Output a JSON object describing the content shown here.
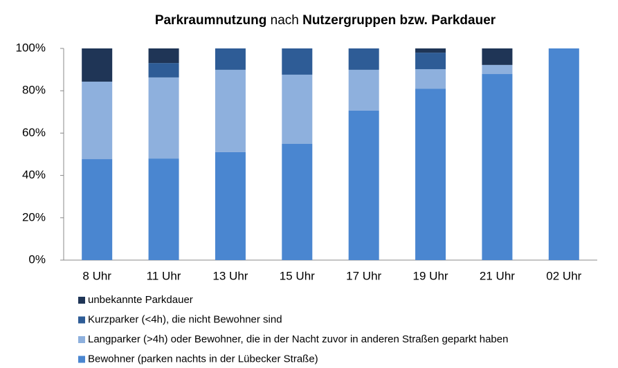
{
  "chart_data": {
    "type": "stacked_bar",
    "title": [
      {
        "text": "Parkraumnutzung",
        "bold": true
      },
      {
        "text": "nach",
        "bold": false
      },
      {
        "text": "Nutzergruppen bzw. Parkdauer",
        "bold": true
      }
    ],
    "categories": [
      "8 Uhr",
      "11 Uhr",
      "13 Uhr",
      "15 Uhr",
      "17 Uhr",
      "19 Uhr",
      "21 Uhr",
      "02 Uhr"
    ],
    "series": [
      {
        "name": "Bewohner (parken nachts in der Lübecker Straße)",
        "color": "#4a86d0",
        "values": [
          47.7,
          48,
          51,
          54.9,
          70.6,
          81,
          87.9,
          100
        ]
      },
      {
        "name": "Langparker (>4h) oder Bewohner, die in der Nacht zuvor in anderen Straßen geparkt haben",
        "color": "#8eb0dd",
        "values": [
          36.6,
          38.3,
          38.9,
          32.7,
          19.3,
          9.2,
          4.3,
          0
        ]
      },
      {
        "name": "Kurzparker (<4h), die nicht Bewohner sind",
        "color": "#2e5c96",
        "values": [
          0,
          6.8,
          10.1,
          12.4,
          10.1,
          7.8,
          0,
          0
        ]
      },
      {
        "name": "unbekannte Parkdauer",
        "color": "#1f3556",
        "values": [
          15.7,
          6.9,
          0,
          0,
          0,
          2,
          7.8,
          0
        ]
      }
    ],
    "ylim": [
      0,
      100
    ],
    "yticks": [
      {
        "value": 0,
        "label": "0%"
      },
      {
        "value": 20,
        "label": "20%"
      },
      {
        "value": 40,
        "label": "40%"
      },
      {
        "value": 60,
        "label": "60%"
      },
      {
        "value": 80,
        "label": "80%"
      },
      {
        "value": 100,
        "label": "100%"
      }
    ],
    "grid": false
  }
}
